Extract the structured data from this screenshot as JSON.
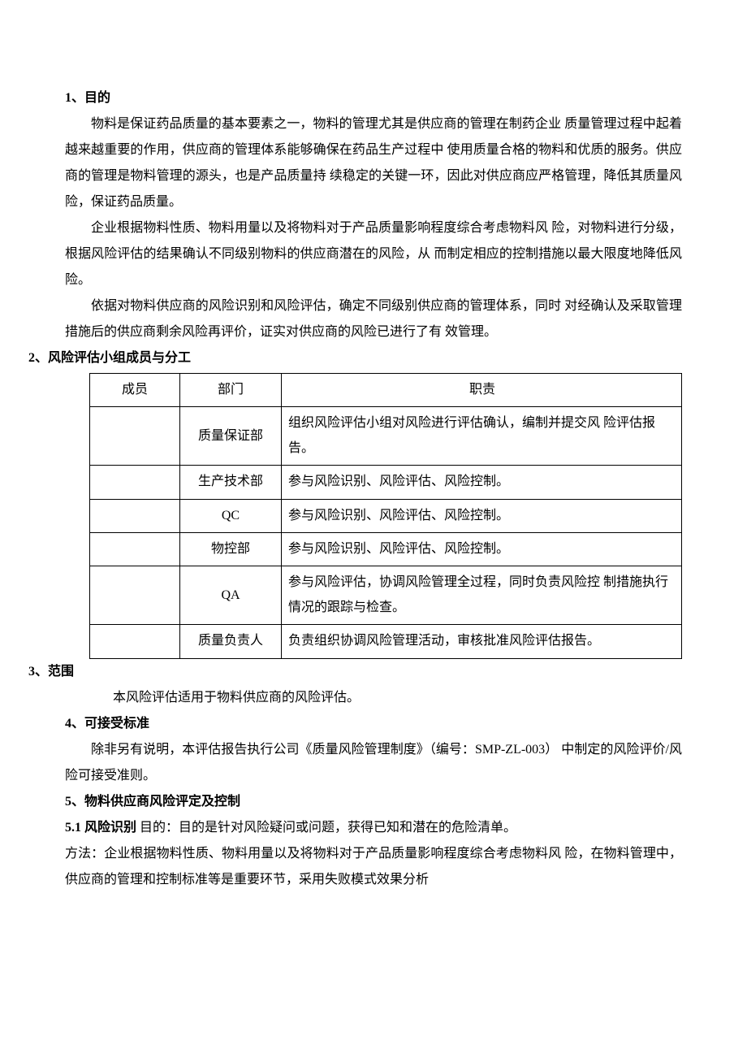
{
  "sections": {
    "s1": {
      "heading": "1、目的",
      "para1": "物料是保证药品质量的基本要素之一，物料的管理尤其是供应商的管理在制药企业 质量管理过程中起着越来越重要的作用，供应商的管理体系能够确保在药品生产过程中 使用质量合格的物料和优质的服务。供应商的管理是物料管理的源头，也是产品质量持 续稳定的关键一环，因此对供应商应严格管理，降低其质量风险，保证药品质量。",
      "para2": "企业根据物料性质、物料用量以及将物料对于产品质量影响程度综合考虑物料风 险，对物料进行分级，根据风险评估的结果确认不同级别物料的供应商潜在的风险，从 而制定相应的控制措施以最大限度地降低风险。",
      "para3": "依据对物料供应商的风险识别和风险评估，确定不同级别供应商的管理体系，同时 对经确认及采取管理措施后的供应商剩余风险再评价，证实对供应商的风险已进行了有 效管理。"
    },
    "s2": {
      "heading": "2、风险评估小组成员与分工",
      "table": {
        "headers": {
          "member": "成员",
          "dept": "部门",
          "resp": "职责"
        },
        "rows": [
          {
            "member": "",
            "dept": "质量保证部",
            "resp": "组织风险评估小组对风险进行评估确认，编制并提交风 险评估报告。"
          },
          {
            "member": "",
            "dept": "生产技术部",
            "resp": "参与风险识别、风险评估、风险控制。"
          },
          {
            "member": "",
            "dept": "QC",
            "resp": "参与风险识别、风险评估、风险控制。"
          },
          {
            "member": "",
            "dept": "物控部",
            "resp": "参与风险识别、风险评估、风险控制。"
          },
          {
            "member": "",
            "dept": "QA",
            "resp": "参与风险评估，协调风险管理全过程，同时负责风险控 制措施执行情况的跟踪与检查。"
          },
          {
            "member": "",
            "dept": "质量负责人",
            "resp": "负责组织协调风险管理活动，审核批准风险评估报告。"
          }
        ]
      }
    },
    "s3": {
      "heading": "3、范围",
      "para1": "本风险评估适用于物料供应商的风险评估。"
    },
    "s4": {
      "heading": "4、可接受标准",
      "para1": "除非另有说明，本评估报告执行公司《质量风险管理制度》（编号：SMP-ZL-003） 中制定的风险评价/风险可接受准则。"
    },
    "s5": {
      "heading": "5、物料供应商风险评定及控制",
      "para1_label": "5.1 风险识别 ",
      "para1_body": "目的：目的是针对风险疑问或问题，获得已知和潜在的危险清单。",
      "para2": "方法：企业根据物料性质、物料用量以及将物料对于产品质量影响程度综合考虑物料风 险，在物料管理中，供应商的管理和控制标准等是重要环节，采用失败模式效果分析"
    }
  }
}
